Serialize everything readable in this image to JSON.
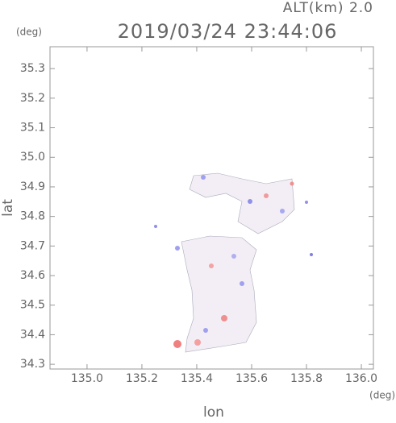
{
  "chart_data": {
    "type": "image",
    "title": "2019/03/24 23:44:06",
    "subtitle": "ALT(km) 2.0",
    "x_label": "lon",
    "y_label": "lat",
    "x_unit": "(deg)",
    "y_unit": "(deg)",
    "xlim": [
      134.865,
      136.044
    ],
    "ylim": [
      34.284,
      35.374
    ],
    "xticks": [
      {
        "value": 135,
        "label": "135.0"
      },
      135.2,
      135.4,
      135.6,
      135.8,
      {
        "value": 136,
        "label": "136.0"
      }
    ],
    "yticks": [
      34.3,
      34.4,
      34.5,
      34.6,
      34.7,
      34.8,
      34.9,
      {
        "value": 35,
        "label": "35.0"
      },
      35.1,
      35.2,
      35.3
    ],
    "grid": false
  }
}
